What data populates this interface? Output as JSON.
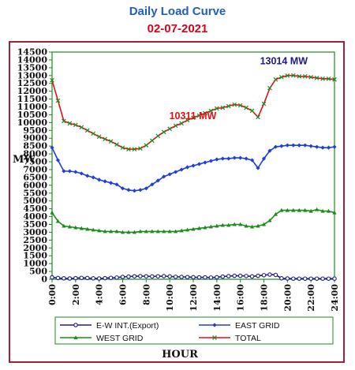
{
  "chart_data": {
    "type": "line",
    "title": "Daily Load Curve",
    "subtitle": "02-07-2021",
    "xlabel": "HOUR",
    "ylabel": "MW",
    "ylim": [
      0,
      14500
    ],
    "yticks": [
      0,
      500,
      1000,
      1500,
      2000,
      2500,
      3000,
      3500,
      4000,
      4500,
      5000,
      5500,
      6000,
      6500,
      7000,
      7500,
      8000,
      8500,
      9000,
      9500,
      10000,
      10500,
      11000,
      11500,
      12000,
      12500,
      13000,
      13500,
      14000,
      14500
    ],
    "xticks": [
      "0:00",
      "2:00",
      "4:00",
      "6:00",
      "8:00",
      "10:00",
      "12:00",
      "14:00",
      "16:00",
      "18:00",
      "20:00",
      "22:00",
      "24:00"
    ],
    "x": [
      0,
      0.5,
      1,
      1.5,
      2,
      2.5,
      3,
      3.5,
      4,
      4.5,
      5,
      5.5,
      6,
      6.5,
      7,
      7.5,
      8,
      8.5,
      9,
      9.5,
      10,
      10.5,
      11,
      11.5,
      12,
      12.5,
      13,
      13.5,
      14,
      14.5,
      15,
      15.5,
      16,
      16.5,
      17,
      17.5,
      18,
      18.5,
      19,
      19.5,
      20,
      20.5,
      21,
      21.5,
      22,
      22.5,
      23,
      23.5,
      24
    ],
    "series": [
      {
        "name": "E-W INT.(Export)",
        "color": "#1a1a8c",
        "marker": "circle",
        "values": [
          120,
          80,
          60,
          50,
          70,
          90,
          80,
          60,
          50,
          70,
          90,
          110,
          150,
          170,
          190,
          200,
          190,
          180,
          190,
          200,
          180,
          160,
          150,
          140,
          130,
          120,
          120,
          110,
          130,
          170,
          200,
          220,
          220,
          210,
          180,
          220,
          260,
          300,
          280,
          60,
          50,
          40,
          40,
          40,
          40,
          40,
          40,
          40,
          40
        ]
      },
      {
        "name": "EAST GRID",
        "color": "#1f3fd6",
        "marker": "diamond",
        "values": [
          8400,
          7600,
          6900,
          6900,
          6850,
          6750,
          6600,
          6500,
          6350,
          6250,
          6150,
          6050,
          5800,
          5700,
          5650,
          5700,
          5800,
          6050,
          6300,
          6550,
          6700,
          6850,
          7000,
          7150,
          7250,
          7350,
          7450,
          7550,
          7650,
          7700,
          7700,
          7750,
          7750,
          7700,
          7600,
          7100,
          7700,
          8200,
          8450,
          8500,
          8550,
          8550,
          8550,
          8550,
          8500,
          8450,
          8400,
          8400,
          8450
        ]
      },
      {
        "name": "WEST GRID",
        "color": "#1a8c1a",
        "marker": "triangle",
        "values": [
          4250,
          3700,
          3400,
          3350,
          3300,
          3250,
          3200,
          3150,
          3100,
          3050,
          3050,
          3050,
          3000,
          3000,
          3000,
          3050,
          3050,
          3050,
          3050,
          3050,
          3050,
          3050,
          3100,
          3150,
          3200,
          3250,
          3300,
          3350,
          3400,
          3450,
          3450,
          3500,
          3500,
          3400,
          3350,
          3400,
          3500,
          3750,
          4150,
          4400,
          4400,
          4400,
          4400,
          4400,
          4350,
          4450,
          4350,
          4350,
          4250
        ]
      },
      {
        "name": "TOTAL",
        "color": "#e0101a",
        "marker": "cross",
        "values": [
          12700,
          11400,
          10100,
          9950,
          9850,
          9700,
          9500,
          9300,
          9100,
          8950,
          8800,
          8600,
          8400,
          8300,
          8300,
          8350,
          8550,
          8850,
          9150,
          9400,
          9600,
          9800,
          9950,
          10150,
          10311,
          10450,
          10600,
          10750,
          10900,
          10950,
          11050,
          11150,
          11100,
          10950,
          10750,
          10350,
          11200,
          12200,
          12750,
          12900,
          13000,
          13014,
          12950,
          12950,
          12900,
          12850,
          12800,
          12800,
          12750
        ]
      }
    ],
    "annotations": [
      {
        "text": "10311 MW",
        "x": 12.5,
        "y": 10311,
        "color": "#e0101a"
      },
      {
        "text": "13014 MW",
        "x": 20.5,
        "y": 13014,
        "color": "#1a1a8c"
      }
    ],
    "grid": false,
    "legend": "bottom"
  }
}
